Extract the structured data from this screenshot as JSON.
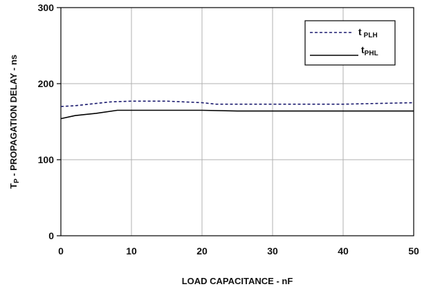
{
  "chart_data": {
    "type": "line",
    "xlabel": "LOAD CAPACITANCE - nF",
    "ylabel_main": "T",
    "ylabel_sub": "P",
    "ylabel_rest": " - PROPAGATION DELAY - ns",
    "xlim": [
      0,
      50
    ],
    "ylim": [
      0,
      300
    ],
    "x_ticks": [
      "0",
      "10",
      "20",
      "30",
      "40",
      "50"
    ],
    "y_ticks": [
      "0",
      "100",
      "200",
      "300"
    ],
    "grid": true,
    "legend_position": "top-right",
    "series": [
      {
        "name": "t",
        "name_sub": "PLH",
        "style": "dashed",
        "color": "#1a1a6e",
        "x": [
          0,
          2,
          5,
          7,
          10,
          15,
          20,
          22,
          25,
          30,
          35,
          40,
          45,
          50
        ],
        "y": [
          170,
          171,
          174,
          176,
          177,
          177,
          175,
          173,
          173,
          173,
          173,
          173,
          174,
          175
        ]
      },
      {
        "name": "t",
        "name_sub": "PHL",
        "style": "solid",
        "color": "#000000",
        "x": [
          0,
          2,
          5,
          8,
          10,
          15,
          20,
          25,
          30,
          35,
          40,
          45,
          50
        ],
        "y": [
          154,
          158,
          161,
          165,
          165,
          165,
          165,
          164,
          164,
          164,
          164,
          164,
          164
        ]
      }
    ]
  }
}
